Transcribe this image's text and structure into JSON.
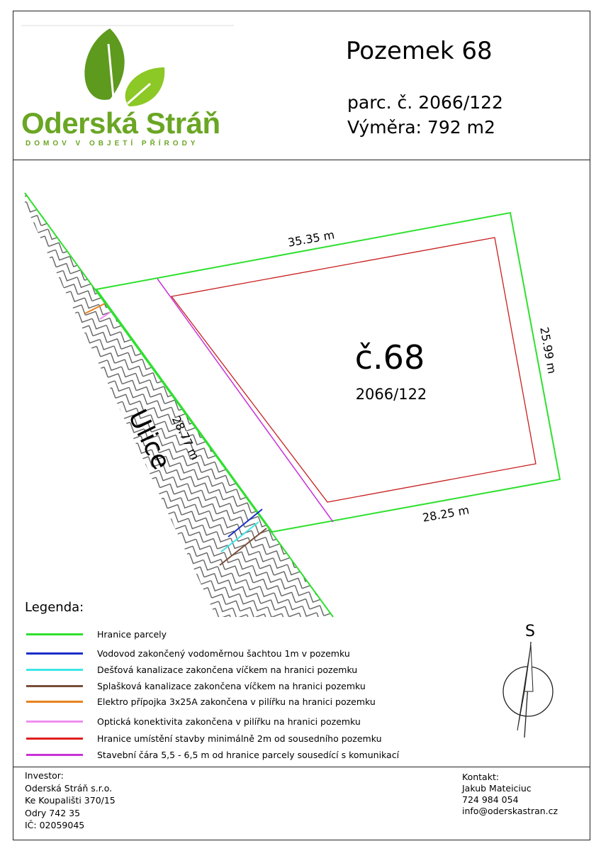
{
  "header": {
    "logo": {
      "brand": "Oderská Stráň",
      "tagline": "DOMOV V OBJETÍ PŘÍRODY",
      "colors": [
        "#5e9a1e",
        "#8cc826"
      ]
    },
    "title": "Pozemek 68",
    "parcel_number": "parc. č. 2066/122",
    "area": "Výměra: 792 m2"
  },
  "plan": {
    "plot_label": "č.68",
    "plot_sub": "2066/122",
    "street": "Ulice",
    "dimensions": {
      "top": "35.35 m",
      "right": "25.99 m",
      "bottom": "28.25 m",
      "street_side": "28.77 m"
    },
    "compass": {
      "label": "S"
    }
  },
  "legend": {
    "title": "Legenda:",
    "items": [
      {
        "label": "Hranice parcely",
        "color": "#2ee02e"
      },
      {
        "label": "Vodovod zakončený vodoměrnou šachtou 1m v pozemku",
        "color": "#1a2fc8"
      },
      {
        "label": "Dešťová kanalizace zakončena víčkem na hranici pozemku",
        "color": "#3de6e6"
      },
      {
        "label": "Splašková kanalizace zakončena víčkem na hranici pozemku",
        "color": "#7a4e3a"
      },
      {
        "label": "Elektro přípojka 3x25A zakončena v pilířku na hranici pozemku",
        "color": "#e8821e"
      },
      {
        "label": "Optická konektivita zakončena v pilířku na hranici pozemku",
        "color": "#f08ef0"
      },
      {
        "label": "Hranice umístění stavby minimálně 2m od  sousedního pozemku",
        "color": "#e01e1e"
      },
      {
        "label": "Stavební čára 5,5 - 6,5 m od hranice parcely sousedící s komunikací",
        "color": "#c832d8"
      }
    ]
  },
  "footer": {
    "investor": [
      "Investor:",
      "Oderská Stráň s.r.o.",
      "Ke Koupališti 370/15",
      "Odry 742 35",
      "IČ: 02059045"
    ],
    "contact": [
      "Kontakt:",
      "Jakub Mateiciuc",
      "724 984 054",
      "info@oderskastran.cz"
    ]
  }
}
